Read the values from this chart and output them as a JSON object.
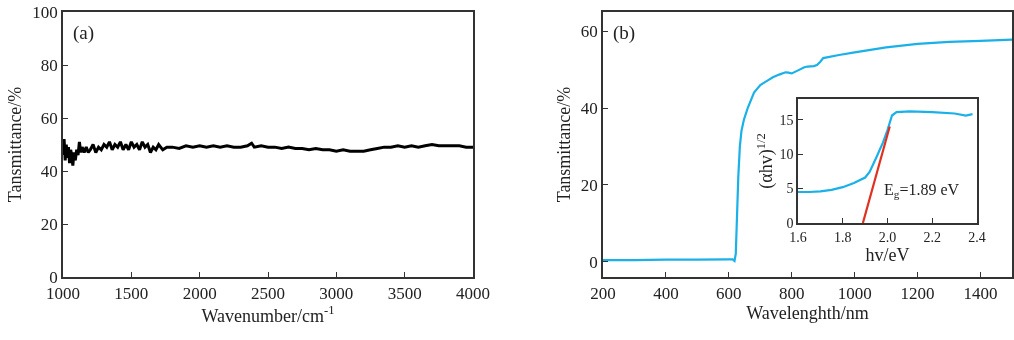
{
  "chart_data": [
    {
      "type": "line",
      "title": "(a)",
      "xlabel": "Wavenumber/cm$^{-1}$",
      "ylabel": "Tansmittance/%",
      "xlim": [
        1000,
        4000
      ],
      "ylim": [
        0,
        100
      ],
      "xticks": [
        1000,
        1500,
        2000,
        2500,
        3000,
        3500,
        4000
      ],
      "yticks": [
        0,
        20,
        40,
        60,
        80,
        100
      ],
      "series": [
        {
          "color": "#000000",
          "x": [
            1000,
            1008,
            1016,
            1024,
            1032,
            1040,
            1048,
            1056,
            1064,
            1072,
            1080,
            1090,
            1100,
            1110,
            1120,
            1130,
            1140,
            1155,
            1170,
            1185,
            1200,
            1220,
            1240,
            1260,
            1280,
            1300,
            1320,
            1340,
            1360,
            1380,
            1400,
            1420,
            1440,
            1460,
            1480,
            1500,
            1520,
            1540,
            1560,
            1580,
            1600,
            1620,
            1640,
            1660,
            1680,
            1700,
            1730,
            1760,
            1800,
            1850,
            1900,
            1950,
            2000,
            2050,
            2100,
            2150,
            2200,
            2250,
            2300,
            2350,
            2380,
            2400,
            2450,
            2500,
            2550,
            2600,
            2650,
            2700,
            2750,
            2800,
            2850,
            2900,
            2950,
            3000,
            3050,
            3100,
            3150,
            3200,
            3250,
            3300,
            3350,
            3400,
            3450,
            3500,
            3550,
            3600,
            3650,
            3700,
            3750,
            3800,
            3850,
            3900,
            3950,
            4000
          ],
          "values": [
            46,
            52,
            44,
            50,
            45,
            49,
            43,
            48,
            46,
            42,
            47,
            44,
            48,
            46,
            51,
            47,
            49,
            47,
            49,
            47,
            48,
            50,
            47,
            49,
            48,
            50,
            49,
            51,
            48,
            50,
            49,
            51,
            48,
            50,
            48,
            51,
            49,
            50,
            48,
            51,
            49,
            50,
            47,
            49,
            48,
            50,
            48,
            49,
            49,
            48.5,
            49.5,
            49,
            49.5,
            49,
            49.5,
            49,
            49.5,
            49,
            49,
            49.5,
            50.5,
            49,
            49.5,
            49,
            49,
            48.5,
            49,
            48.5,
            48.5,
            48,
            48.5,
            48,
            48,
            47.5,
            48,
            47.5,
            47.5,
            47.5,
            48,
            48.5,
            49,
            49,
            49.5,
            49,
            49.5,
            49,
            49.5,
            50,
            49.5,
            49.5,
            49.5,
            49.5,
            49,
            49
          ]
        }
      ]
    },
    {
      "type": "line",
      "title": "(b)",
      "xlabel": "Wavelenghth/nm",
      "ylabel": "Tansmittance/%",
      "xlim": [
        200,
        1500
      ],
      "ylim": [
        -4,
        65
      ],
      "xticks": [
        200,
        400,
        600,
        800,
        1000,
        1200,
        1400
      ],
      "yticks": [
        0,
        20,
        40,
        60
      ],
      "series": [
        {
          "color": "#1ab0e8",
          "x": [
            200,
            300,
            400,
            500,
            600,
            612,
            618,
            622,
            626,
            630,
            635,
            640,
            648,
            660,
            680,
            700,
            720,
            740,
            760,
            780,
            790,
            800,
            820,
            840,
            850,
            870,
            880,
            890,
            900,
            950,
            1000,
            1100,
            1200,
            1300,
            1400,
            1500
          ],
          "values": [
            0.4,
            0.4,
            0.5,
            0.5,
            0.6,
            0.6,
            0.2,
            2,
            12,
            22,
            30,
            34,
            37,
            40,
            44,
            46,
            47,
            48,
            48.7,
            49.3,
            49.2,
            49,
            49.8,
            50.6,
            50.8,
            50.9,
            51.2,
            52,
            53,
            53.8,
            54.5,
            55.8,
            56.7,
            57.2,
            57.5,
            57.8
          ]
        }
      ]
    },
    {
      "type": "line",
      "xlabel": "hv/eV",
      "ylabel": "(αhv)$^{1/2}$",
      "xlim": [
        1.6,
        2.4
      ],
      "ylim": [
        0,
        18
      ],
      "xticks": [
        {
          "value": 1.6,
          "label": "1.6"
        },
        {
          "value": 1.8,
          "label": "1.8"
        },
        {
          "value": 2.0,
          "label": "2.0"
        },
        {
          "value": 2.2,
          "label": "2.2"
        },
        {
          "value": 2.4,
          "label": "2.4"
        }
      ],
      "yticks": [
        0,
        5,
        10,
        15
      ],
      "annotations": [
        "E$_{g}$=1.89 eV"
      ],
      "series": [
        {
          "color": "#1ab0e8",
          "x": [
            1.6,
            1.65,
            1.7,
            1.75,
            1.8,
            1.85,
            1.9,
            1.92,
            1.95,
            1.98,
            2.0,
            2.02,
            2.04,
            2.1,
            2.2,
            2.3,
            2.35,
            2.38
          ],
          "values": [
            4.5,
            4.5,
            4.6,
            4.8,
            5.2,
            5.8,
            6.6,
            7.4,
            9.5,
            11.7,
            13.5,
            15.6,
            16.1,
            16.2,
            16.1,
            15.9,
            15.6,
            15.8
          ]
        },
        {
          "color": "#e03020",
          "x": [
            1.89,
            2.01
          ],
          "values": [
            0,
            14
          ]
        }
      ]
    }
  ]
}
